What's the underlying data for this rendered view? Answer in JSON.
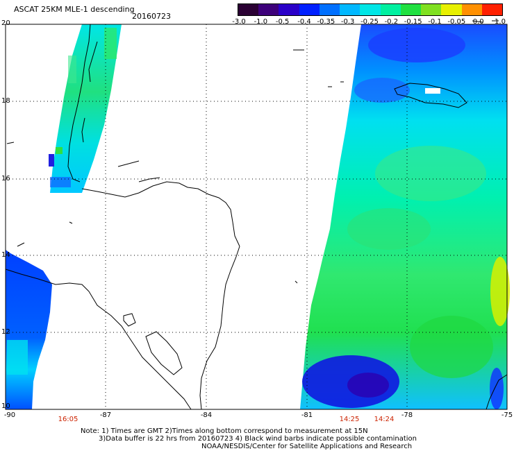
{
  "header": {
    "title": "ASCAT 25KM MLE-1 descending",
    "date": "20160723"
  },
  "colorbar": {
    "ticks": [
      "-3.0",
      "-1.0",
      "-0.5",
      "-0.4",
      "-0.35",
      "-0.3",
      "-0.25",
      "-0.2",
      "-0.15",
      "-0.1",
      "-0.05",
      "0.0",
      "1.0"
    ],
    "colors": [
      "#2a0033",
      "#3d007a",
      "#2a00c8",
      "#0020ff",
      "#0070ff",
      "#00b8ff",
      "#00e6e6",
      "#00f0a0",
      "#20e040",
      "#80e020",
      "#e8f000",
      "#ff9000",
      "#ff2000"
    ]
  },
  "axes": {
    "lat_labels": [
      "20",
      "18",
      "16",
      "14",
      "12",
      "10"
    ],
    "lon_labels": [
      "-90",
      "-87",
      "-84",
      "-81",
      "-78",
      "-75"
    ]
  },
  "pass_times": [
    "16:05",
    "14:25",
    "14:24"
  ],
  "notes": {
    "line1": "Note: 1) Times are GMT 2)Times along bottom correspond to measurement at 15N",
    "line2": "3)Data buffer is 22 hrs from 20160723 4) Black wind barbs indicate possible contamination",
    "line3": "NOAA/NESDIS/Center for Satellite Applications and Research"
  },
  "map_colors": {
    "cyan": "#00e8e8",
    "light_green": "#28e88c",
    "green": "#20e040",
    "blue": "#0050ff",
    "deep_blue": "#1010d8",
    "yellow": "#d8f000"
  }
}
